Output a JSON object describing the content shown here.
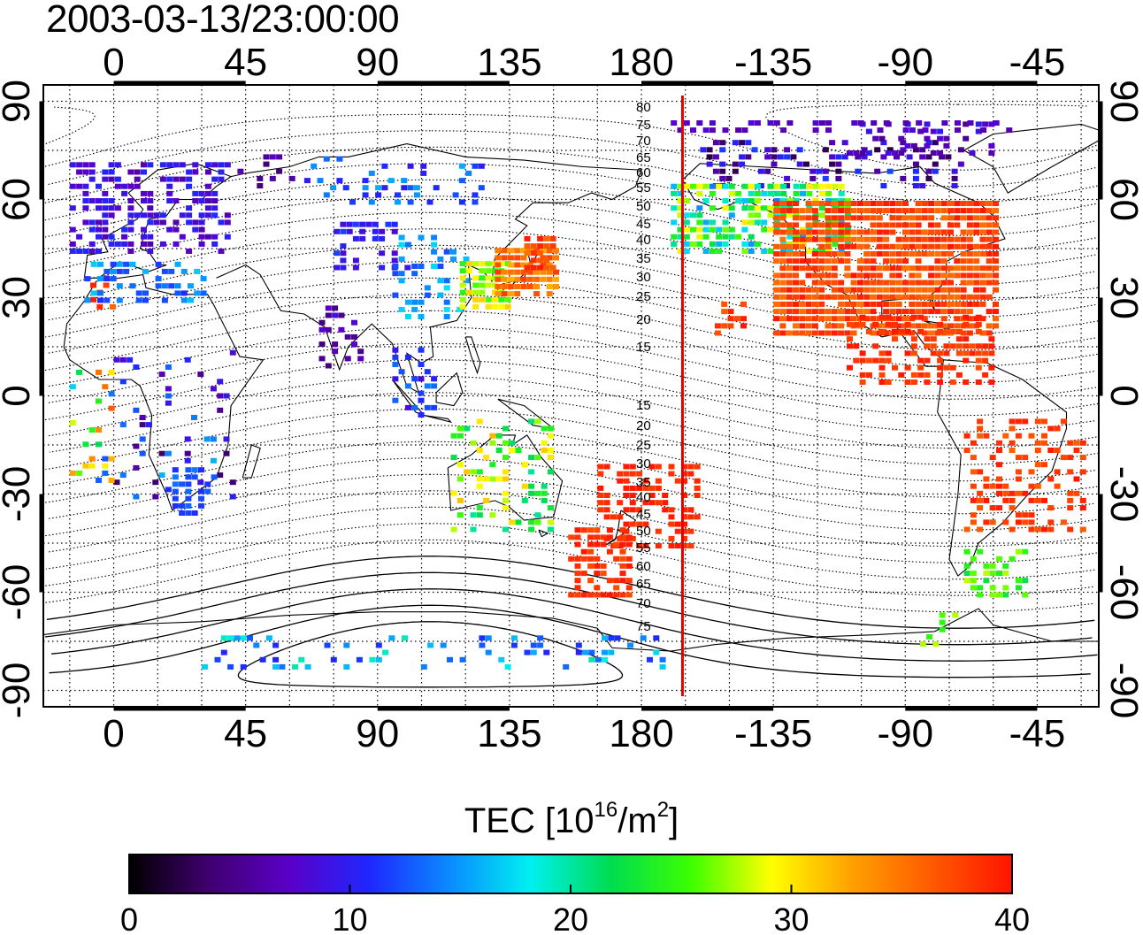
{
  "title": "2003-03-13/23:00:00",
  "map": {
    "lon_tick_labels_top": [
      "0",
      "45",
      "90",
      "135",
      "180",
      "-135",
      "-90",
      "-45"
    ],
    "lon_tick_labels_bottom": [
      "0",
      "45",
      "90",
      "135",
      "180",
      "-135",
      "-90",
      "-45"
    ],
    "lat_tick_labels_left": [
      "90",
      "60",
      "30",
      "0",
      "-30",
      "-60",
      "-90"
    ],
    "lat_tick_labels_right": [
      "90",
      "60",
      "30",
      "0",
      "-30",
      "-60",
      "-90"
    ],
    "lon_ticks_deg": [
      0,
      45,
      90,
      135,
      180,
      225,
      270,
      315
    ],
    "lat_ticks_deg": [
      90,
      60,
      30,
      0,
      -30,
      -60,
      -90
    ],
    "lon_range_deg": [
      -24,
      336
    ],
    "lat_range_deg": [
      -95,
      95
    ],
    "meridian_marker_deg": 194,
    "marker_color": "#e00000",
    "contour_labels_north": [
      "80",
      "75",
      "70",
      "65",
      "60",
      "55",
      "50",
      "45",
      "40",
      "35",
      "30",
      "25",
      "20",
      "15"
    ],
    "contour_labels_south": [
      "15",
      "20",
      "25",
      "30",
      "35",
      "40",
      "45",
      "50",
      "55",
      "60",
      "65",
      "70",
      "75"
    ]
  },
  "colorbar": {
    "label_main": "TEC  [10",
    "label_sup1": "16",
    "label_mid": "/m",
    "label_sup2": "2",
    "label_end": "]",
    "ticks": [
      "0",
      "10",
      "20",
      "30",
      "40"
    ],
    "range": [
      0,
      40
    ],
    "colors": [
      "#000000",
      "#400070",
      "#5a00c8",
      "#1e28ff",
      "#0a8cff",
      "#00f0f0",
      "#00dc50",
      "#3cff00",
      "#ffff00",
      "#ffa000",
      "#ff5a00",
      "#ff1400"
    ]
  }
}
